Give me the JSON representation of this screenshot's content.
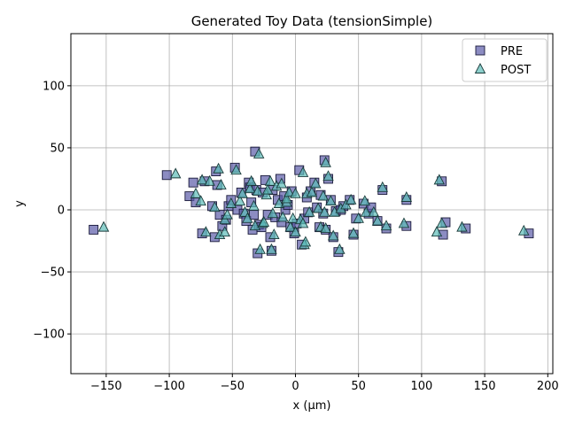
{
  "chart_data": {
    "type": "scatter",
    "title": "Generated Toy Data (tensionSimple)",
    "xlabel": "x (μm)",
    "ylabel": "y",
    "xlim": [
      -178,
      204
    ],
    "ylim": [
      -132,
      142
    ],
    "xticks": [
      -150,
      -100,
      -50,
      0,
      50,
      100,
      150,
      200
    ],
    "yticks": [
      -100,
      -50,
      0,
      50,
      100
    ],
    "xtick_labels": [
      "−150",
      "−100",
      "−50",
      "0",
      "50",
      "100",
      "150",
      "200"
    ],
    "ytick_labels": [
      "−100",
      "−50",
      "0",
      "50",
      "100"
    ],
    "grid": true,
    "legend_position": "top-right",
    "series": [
      {
        "name": "PRE",
        "marker": "square",
        "color": "#5b5ba8",
        "points": [
          [
            -160,
            -16
          ],
          [
            -102,
            28
          ],
          [
            -84,
            11
          ],
          [
            -81,
            22
          ],
          [
            -79,
            6
          ],
          [
            -74,
            -19
          ],
          [
            -72,
            23
          ],
          [
            -66,
            3
          ],
          [
            -64,
            -22
          ],
          [
            -63,
            31
          ],
          [
            -62,
            20
          ],
          [
            -60,
            -4
          ],
          [
            -58,
            -13
          ],
          [
            -55,
            -8
          ],
          [
            -53,
            3
          ],
          [
            -51,
            8
          ],
          [
            -48,
            34
          ],
          [
            -46,
            0
          ],
          [
            -43,
            14
          ],
          [
            -41,
            -3
          ],
          [
            -39,
            -9
          ],
          [
            -37,
            22
          ],
          [
            -36,
            18
          ],
          [
            -35,
            6
          ],
          [
            -34,
            -16
          ],
          [
            -33,
            -4
          ],
          [
            -32,
            47
          ],
          [
            -31,
            16
          ],
          [
            -30,
            -35
          ],
          [
            -29,
            -12
          ],
          [
            -27,
            -14
          ],
          [
            -26,
            14
          ],
          [
            -24,
            24
          ],
          [
            -22,
            -4
          ],
          [
            -20,
            -22
          ],
          [
            -19,
            -33
          ],
          [
            -18,
            16
          ],
          [
            -16,
            -6
          ],
          [
            -14,
            8
          ],
          [
            -12,
            25
          ],
          [
            -11,
            -10
          ],
          [
            -9,
            11
          ],
          [
            -8,
            0
          ],
          [
            -6,
            4
          ],
          [
            -4,
            -14
          ],
          [
            -3,
            15
          ],
          [
            -1,
            -19
          ],
          [
            1,
            -11
          ],
          [
            3,
            32
          ],
          [
            5,
            -28
          ],
          [
            7,
            -7
          ],
          [
            9,
            10
          ],
          [
            10,
            -2
          ],
          [
            12,
            15
          ],
          [
            15,
            22
          ],
          [
            17,
            2
          ],
          [
            19,
            -14
          ],
          [
            20,
            12
          ],
          [
            22,
            -3
          ],
          [
            23,
            40
          ],
          [
            24,
            -16
          ],
          [
            26,
            25
          ],
          [
            28,
            8
          ],
          [
            30,
            -22
          ],
          [
            32,
            -1
          ],
          [
            34,
            -34
          ],
          [
            36,
            0
          ],
          [
            38,
            3
          ],
          [
            43,
            8
          ],
          [
            46,
            -20
          ],
          [
            48,
            -7
          ],
          [
            54,
            5
          ],
          [
            58,
            -3
          ],
          [
            60,
            2
          ],
          [
            65,
            -9
          ],
          [
            69,
            16
          ],
          [
            72,
            -15
          ],
          [
            88,
            8
          ],
          [
            88,
            -13
          ],
          [
            116,
            23
          ],
          [
            117,
            -20
          ],
          [
            119,
            -10
          ],
          [
            135,
            -15
          ],
          [
            185,
            -19
          ]
        ]
      },
      {
        "name": "POST",
        "marker": "triangle",
        "color": "#5cbcb8",
        "points": [
          [
            -152,
            -14
          ],
          [
            -95,
            29
          ],
          [
            -79,
            13
          ],
          [
            -75,
            7
          ],
          [
            -74,
            24
          ],
          [
            -71,
            -18
          ],
          [
            -68,
            23
          ],
          [
            -64,
            2
          ],
          [
            -61,
            33
          ],
          [
            -60,
            -20
          ],
          [
            -59,
            20
          ],
          [
            -56,
            -8
          ],
          [
            -56,
            -18
          ],
          [
            -54,
            -4
          ],
          [
            -51,
            5
          ],
          [
            -47,
            32
          ],
          [
            -44,
            7
          ],
          [
            -42,
            13
          ],
          [
            -40,
            -2
          ],
          [
            -38,
            -7
          ],
          [
            -36,
            17
          ],
          [
            -35,
            23
          ],
          [
            -33,
            3
          ],
          [
            -32,
            -13
          ],
          [
            -30,
            15
          ],
          [
            -29,
            45
          ],
          [
            -28,
            -32
          ],
          [
            -26,
            -11
          ],
          [
            -25,
            -10
          ],
          [
            -23,
            12
          ],
          [
            -22,
            16
          ],
          [
            -20,
            23
          ],
          [
            -19,
            -32
          ],
          [
            -18,
            -3
          ],
          [
            -17,
            -20
          ],
          [
            -15,
            19
          ],
          [
            -13,
            5
          ],
          [
            -11,
            21
          ],
          [
            -10,
            -6
          ],
          [
            -7,
            6
          ],
          [
            -7,
            9
          ],
          [
            -5,
            14
          ],
          [
            -4,
            -14
          ],
          [
            -2,
            -7
          ],
          [
            0,
            13
          ],
          [
            0,
            -18
          ],
          [
            4,
            -8
          ],
          [
            6,
            30
          ],
          [
            6,
            -11
          ],
          [
            7,
            -28
          ],
          [
            8,
            -26
          ],
          [
            9,
            13
          ],
          [
            11,
            -2
          ],
          [
            13,
            14
          ],
          [
            16,
            21
          ],
          [
            18,
            1
          ],
          [
            20,
            -14
          ],
          [
            22,
            11
          ],
          [
            23,
            -2
          ],
          [
            24,
            38
          ],
          [
            24,
            -15
          ],
          [
            26,
            27
          ],
          [
            28,
            7
          ],
          [
            30,
            -21
          ],
          [
            31,
            -2
          ],
          [
            35,
            -32
          ],
          [
            36,
            1
          ],
          [
            40,
            4
          ],
          [
            44,
            8
          ],
          [
            46,
            -19
          ],
          [
            50,
            -7
          ],
          [
            55,
            7
          ],
          [
            56,
            -2
          ],
          [
            62,
            -2
          ],
          [
            65,
            -9
          ],
          [
            69,
            18
          ],
          [
            72,
            -13
          ],
          [
            86,
            -11
          ],
          [
            88,
            10
          ],
          [
            112,
            -18
          ],
          [
            114,
            24
          ],
          [
            116,
            -11
          ],
          [
            132,
            -14
          ],
          [
            181,
            -17
          ]
        ]
      }
    ]
  }
}
